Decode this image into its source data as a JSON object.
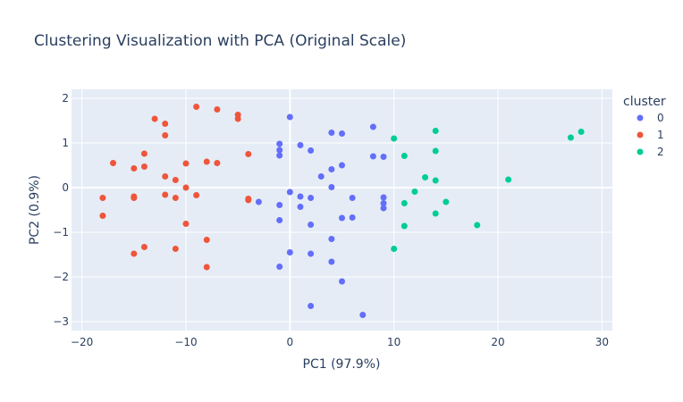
{
  "chart_data": {
    "type": "scatter",
    "title": "Clustering Visualization with PCA (Original Scale)",
    "xlabel": "PC1 (97.9%)",
    "ylabel": "PC2 (0.9%)",
    "xlim": [
      -21,
      31
    ],
    "ylim": [
      -3.2,
      2.2
    ],
    "x_ticks": [
      -20,
      -10,
      0,
      10,
      20,
      30
    ],
    "y_ticks": [
      -3,
      -2,
      -1,
      0,
      1,
      2
    ],
    "grid": true,
    "legend": {
      "title": "cluster",
      "position": "right"
    },
    "series": [
      {
        "name": "0",
        "color": "#636efa",
        "points": [
          [
            0,
            1.58
          ],
          [
            8,
            1.36
          ],
          [
            4,
            1.23
          ],
          [
            5,
            1.21
          ],
          [
            -1,
            0.98
          ],
          [
            1,
            0.95
          ],
          [
            2,
            0.83
          ],
          [
            -1,
            0.84
          ],
          [
            -1,
            0.72
          ],
          [
            8,
            0.7
          ],
          [
            9,
            0.69
          ],
          [
            5,
            0.5
          ],
          [
            4,
            0.41
          ],
          [
            3,
            0.25
          ],
          [
            4,
            0.01
          ],
          [
            0,
            -0.1
          ],
          [
            1,
            -0.2
          ],
          [
            2,
            -0.23
          ],
          [
            6,
            -0.23
          ],
          [
            9,
            -0.22
          ],
          [
            -3,
            -0.32
          ],
          [
            9,
            -0.35
          ],
          [
            -1,
            -0.39
          ],
          [
            1,
            -0.43
          ],
          [
            9,
            -0.46
          ],
          [
            5,
            -0.68
          ],
          [
            6,
            -0.67
          ],
          [
            -1,
            -0.73
          ],
          [
            2,
            -0.83
          ],
          [
            4,
            -1.15
          ],
          [
            0,
            -1.45
          ],
          [
            2,
            -1.48
          ],
          [
            4,
            -1.66
          ],
          [
            -1,
            -1.77
          ],
          [
            5,
            -2.1
          ],
          [
            2,
            -2.65
          ],
          [
            7,
            -2.85
          ]
        ]
      },
      {
        "name": "1",
        "color": "#ef553b",
        "points": [
          [
            -9,
            1.81
          ],
          [
            -7,
            1.75
          ],
          [
            -5,
            1.63
          ],
          [
            -5,
            1.54
          ],
          [
            -13,
            1.54
          ],
          [
            -12,
            1.43
          ],
          [
            -12,
            1.17
          ],
          [
            -14,
            0.76
          ],
          [
            -4,
            0.75
          ],
          [
            -17,
            0.55
          ],
          [
            -8,
            0.58
          ],
          [
            -7,
            0.55
          ],
          [
            -10,
            0.54
          ],
          [
            -14,
            0.47
          ],
          [
            -15,
            0.43
          ],
          [
            -12,
            0.25
          ],
          [
            -11,
            0.17
          ],
          [
            -10,
            0.0
          ],
          [
            -12,
            -0.16
          ],
          [
            -9,
            -0.17
          ],
          [
            -15,
            -0.2
          ],
          [
            -18,
            -0.23
          ],
          [
            -15,
            -0.23
          ],
          [
            -11,
            -0.23
          ],
          [
            -4,
            -0.25
          ],
          [
            -4,
            -0.28
          ],
          [
            -18,
            -0.63
          ],
          [
            -10,
            -0.81
          ],
          [
            -8,
            -1.17
          ],
          [
            -14,
            -1.33
          ],
          [
            -11,
            -1.37
          ],
          [
            -15,
            -1.48
          ],
          [
            -8,
            -1.78
          ]
        ]
      },
      {
        "name": "2",
        "color": "#00cc96",
        "points": [
          [
            28,
            1.25
          ],
          [
            14,
            1.27
          ],
          [
            27,
            1.12
          ],
          [
            10,
            1.1
          ],
          [
            14,
            0.82
          ],
          [
            11,
            0.71
          ],
          [
            13,
            0.23
          ],
          [
            21,
            0.18
          ],
          [
            14,
            0.16
          ],
          [
            12,
            -0.09
          ],
          [
            15,
            -0.32
          ],
          [
            11,
            -0.35
          ],
          [
            14,
            -0.58
          ],
          [
            18,
            -0.84
          ],
          [
            11,
            -0.86
          ],
          [
            10,
            -1.37
          ]
        ]
      }
    ]
  }
}
